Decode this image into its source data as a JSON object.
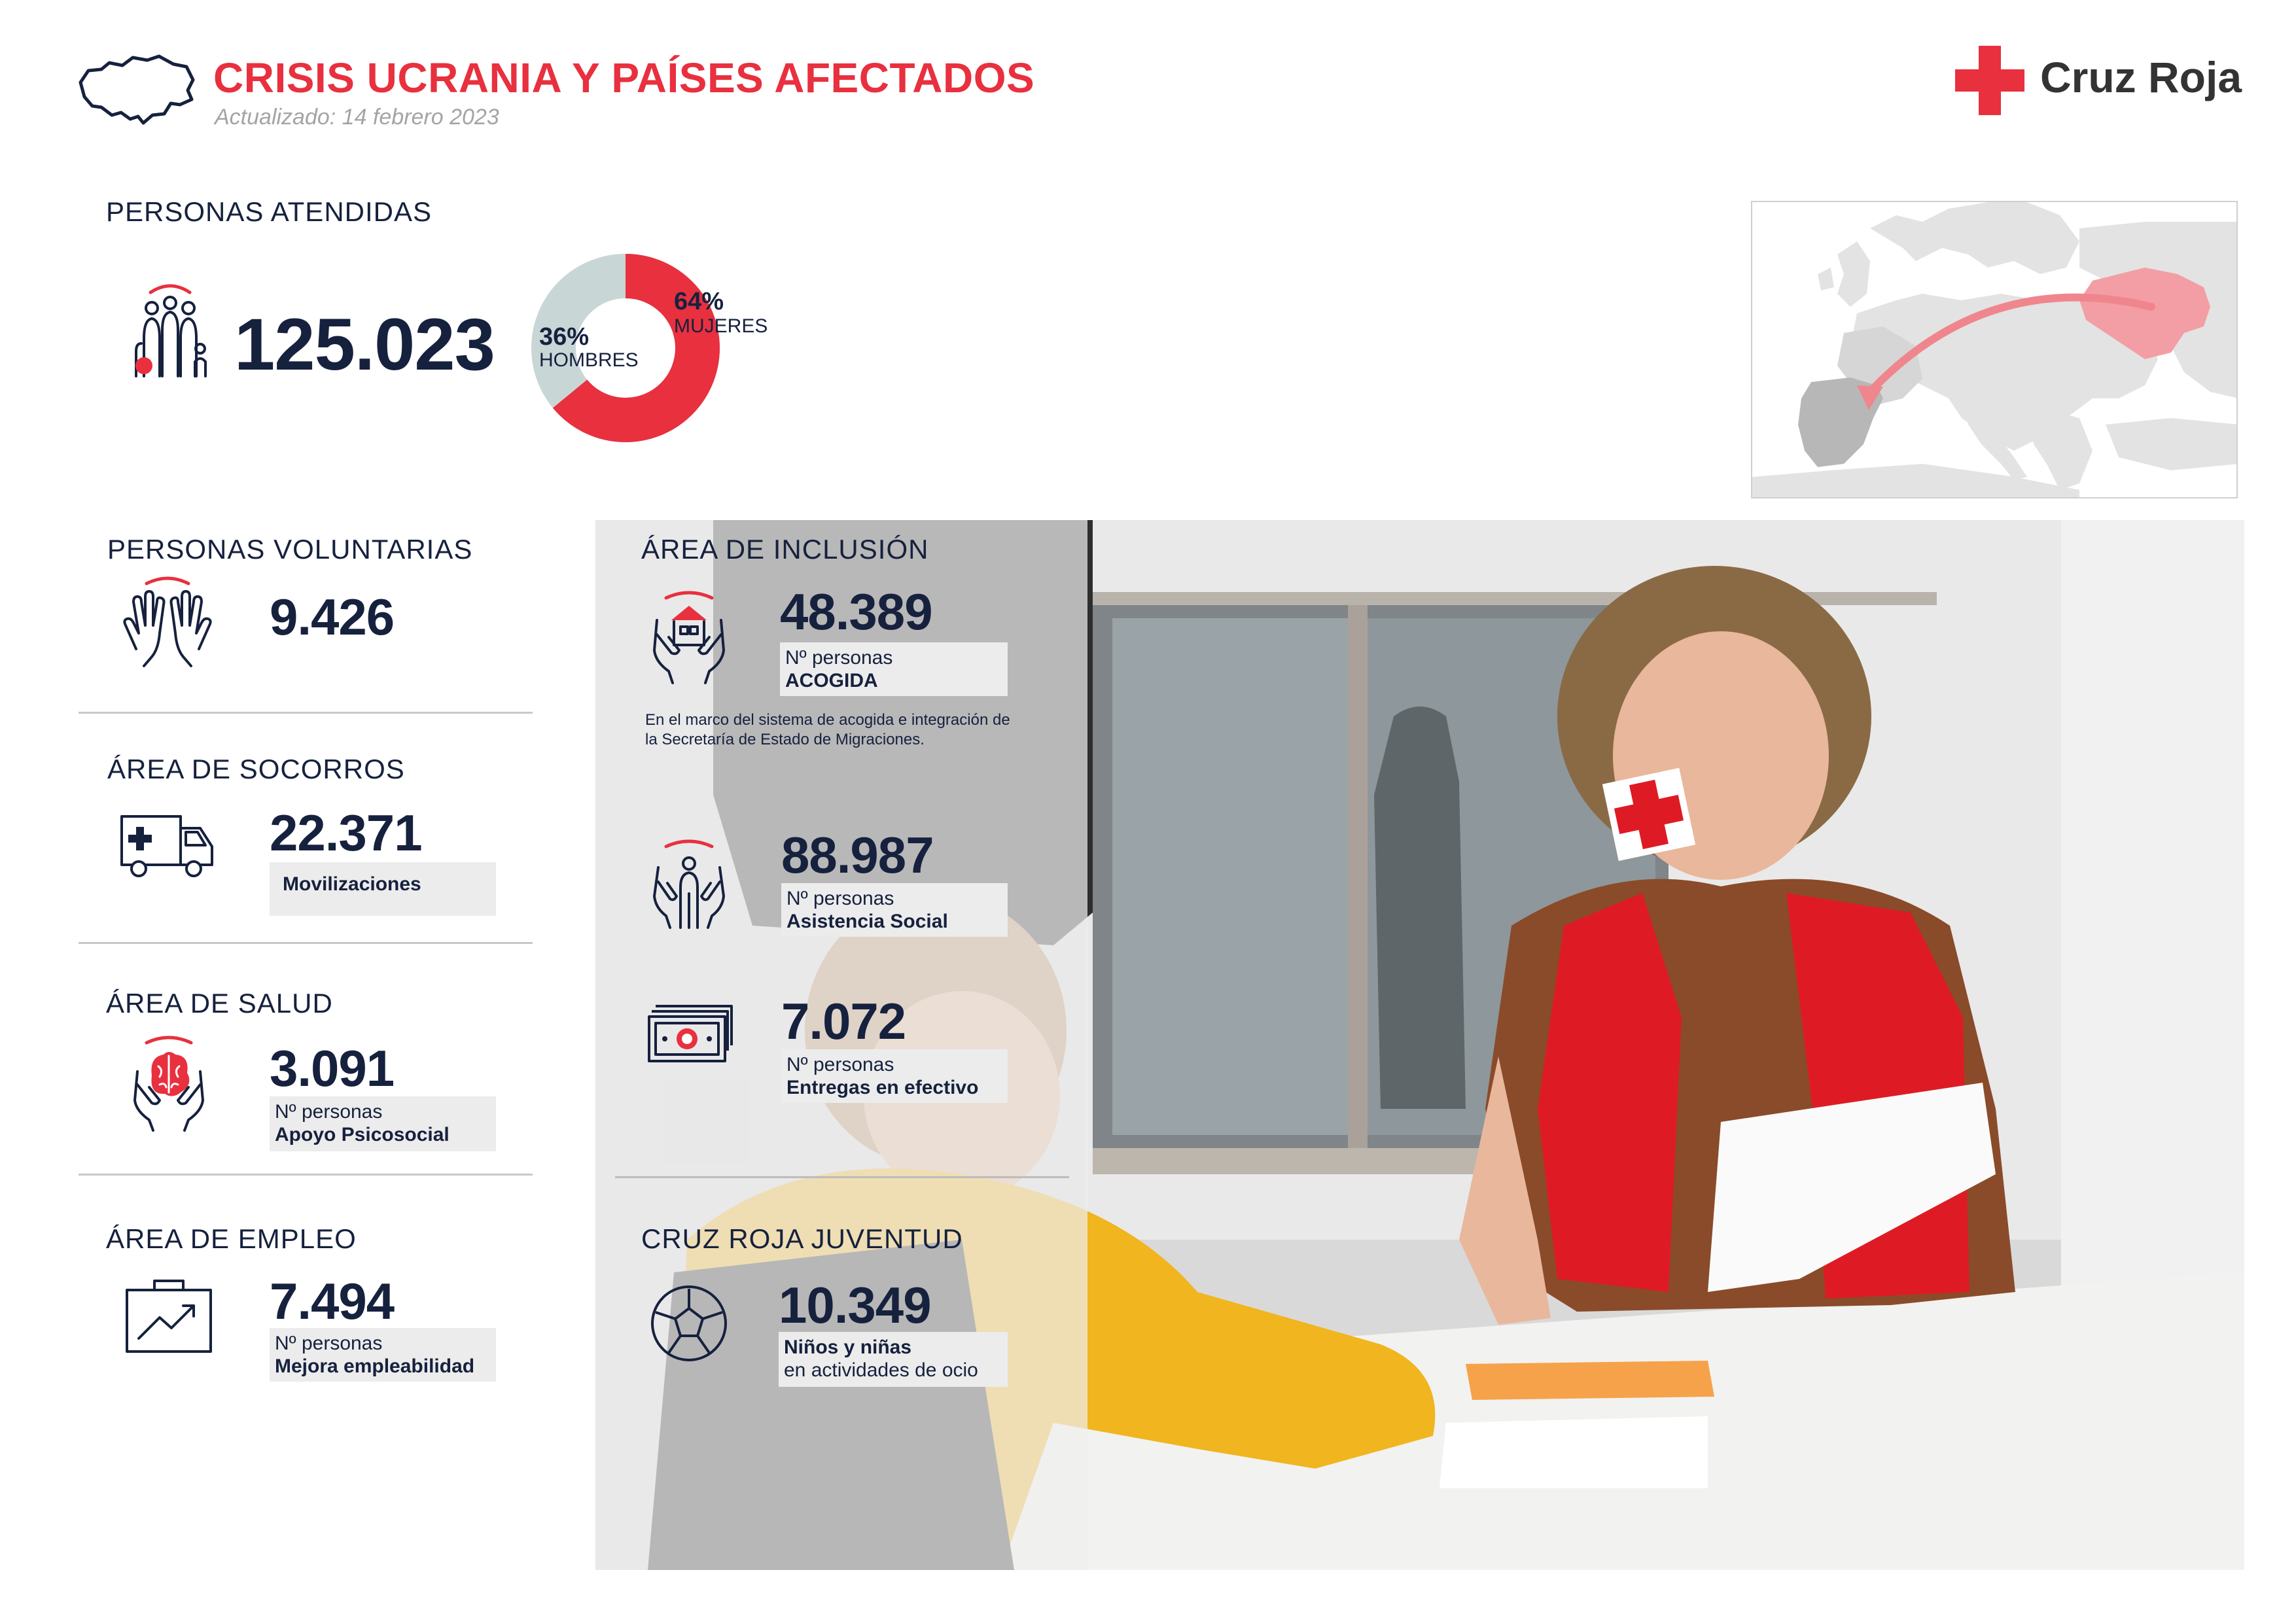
{
  "header": {
    "title": "CRISIS UCRANIA Y PAÍSES AFECTADOS",
    "updated": "Actualizado: 14 febrero 2023",
    "brand": "Cruz Roja"
  },
  "colors": {
    "accent_red": "#e8303f",
    "navy": "#16213e",
    "light_gray": "#ececec",
    "donut_gray": "#c9d6d6"
  },
  "personas_atendidas": {
    "title": "PERSONAS ATENDIDAS",
    "value": "125.023",
    "icon": "people-group-icon",
    "gender": {
      "women_pct": "64%",
      "women_label": "MUJERES",
      "men_pct": "36%",
      "men_label": "HOMBRES",
      "women_fraction": 0.64
    }
  },
  "voluntarias": {
    "title": "PERSONAS VOLUNTARIAS",
    "value": "9.426",
    "icon": "raised-hands-icon"
  },
  "socorros": {
    "title": "ÁREA DE SOCORROS",
    "value": "22.371",
    "label": "Movilizaciones",
    "icon": "ambulance-icon"
  },
  "salud": {
    "title": "ÁREA DE SALUD",
    "value": "3.091",
    "label_top": "Nº personas",
    "label_bold": "Apoyo Psicosocial",
    "icon": "brain-in-hands-icon"
  },
  "empleo": {
    "title": "ÁREA DE EMPLEO",
    "value": "7.494",
    "label_top": "Nº personas",
    "label_bold": "Mejora empleabilidad",
    "icon": "briefcase-chart-icon"
  },
  "inclusion": {
    "title": "ÁREA DE INCLUSIÓN",
    "acogida": {
      "value": "48.389",
      "label_top": "Nº personas",
      "label_bold": "ACOGIDA",
      "note": "En el marco del sistema de acogida e integración de la Secretaría de Estado de Migraciones.",
      "icon": "house-in-hands-icon"
    },
    "asistencia": {
      "value": "88.987",
      "label_top": "Nº personas",
      "label_bold": "Asistencia Social",
      "icon": "helping-hands-person-icon"
    },
    "efectivo": {
      "value": "7.072",
      "label_top": "Nº personas",
      "label_bold": "Entregas en efectivo",
      "icon": "cash-notes-icon"
    }
  },
  "juventud": {
    "title": "CRUZ ROJA JUVENTUD",
    "value": "10.349",
    "label_line1": "Niños y niñas",
    "label_line2": "en actividades de ocio",
    "icon": "soccer-ball-icon"
  },
  "map": {
    "icon": "europe-map-icon",
    "highlight_from": "Ukraine",
    "highlight_to": "Spain"
  },
  "photo": {
    "icon": "volunteer-photo"
  }
}
